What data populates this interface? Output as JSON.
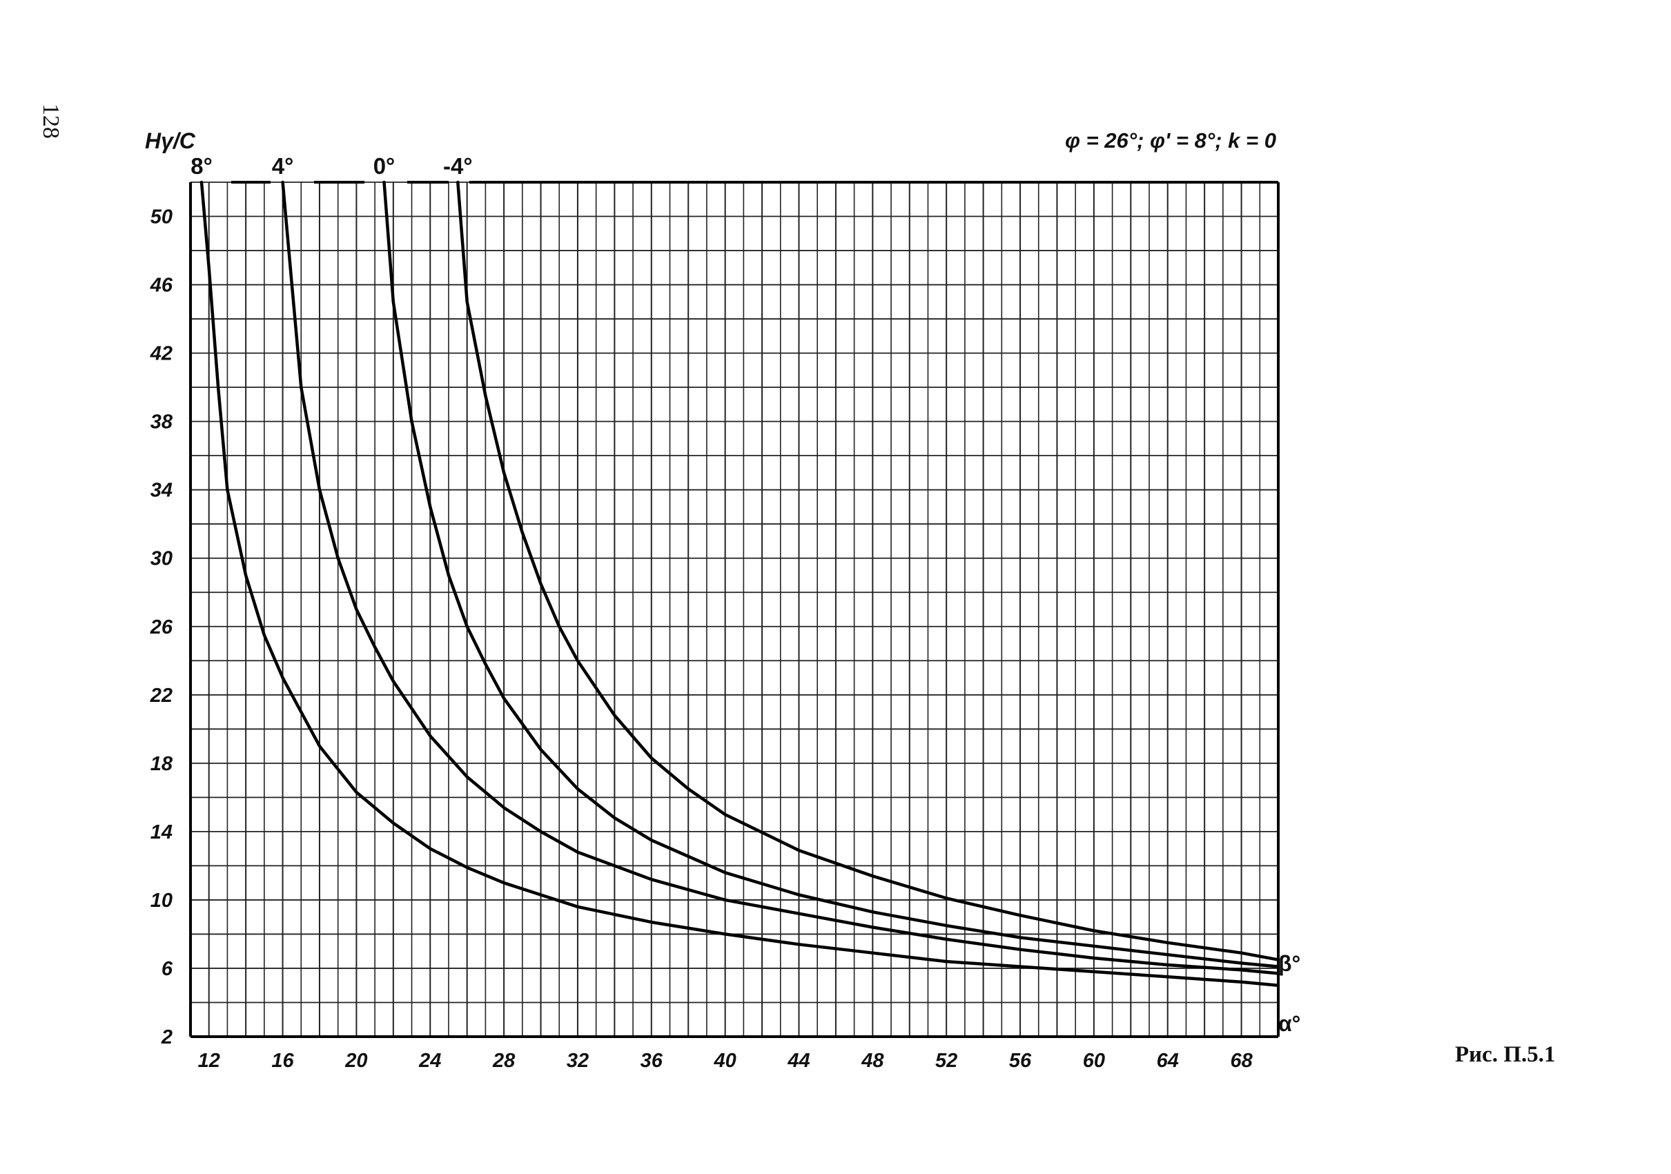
{
  "page": {
    "number": "128",
    "caption": "Рис. П.5.1"
  },
  "chart_data": {
    "type": "line",
    "title": "φ = 26°; φ' = 8°; k = 0",
    "ylabel": "Hγ/C",
    "xlabel": "α°",
    "series_axis_label": "β°",
    "xlim": [
      11,
      70
    ],
    "ylim": [
      2,
      52
    ],
    "x_ticks": [
      12,
      16,
      20,
      24,
      28,
      32,
      36,
      40,
      44,
      48,
      52,
      56,
      60,
      64,
      68
    ],
    "y_ticks": [
      2,
      6,
      10,
      14,
      18,
      22,
      26,
      30,
      34,
      38,
      42,
      46,
      50
    ],
    "grid": true,
    "series": [
      {
        "name": "8°",
        "x": [
          11.6,
          12,
          12.5,
          13,
          14,
          15,
          16,
          17,
          18,
          20,
          22,
          24,
          26,
          28,
          30,
          32,
          36,
          40,
          44,
          48,
          52,
          56,
          60,
          64,
          68,
          70
        ],
        "y": [
          52,
          47,
          40,
          34,
          29,
          25.5,
          23,
          21,
          19,
          16.3,
          14.5,
          13,
          11.9,
          11,
          10.3,
          9.6,
          8.7,
          8,
          7.4,
          6.9,
          6.4,
          6.1,
          5.8,
          5.5,
          5.2,
          5
        ]
      },
      {
        "name": "4°",
        "x": [
          16,
          16.5,
          17,
          18,
          19,
          20,
          21,
          22,
          24,
          26,
          28,
          30,
          32,
          36,
          40,
          44,
          48,
          52,
          56,
          60,
          64,
          68,
          70
        ],
        "y": [
          52,
          46,
          40,
          34,
          30,
          27,
          24.8,
          22.8,
          19.6,
          17.2,
          15.4,
          14,
          12.8,
          11.2,
          10,
          9.2,
          8.4,
          7.7,
          7.1,
          6.6,
          6.2,
          5.9,
          5.7
        ]
      },
      {
        "name": "0°",
        "x": [
          21.5,
          22,
          23,
          24,
          25,
          26,
          27,
          28,
          30,
          32,
          34,
          36,
          40,
          44,
          48,
          52,
          56,
          60,
          64,
          68,
          70
        ],
        "y": [
          52,
          45,
          38,
          33,
          29,
          26,
          23.8,
          21.8,
          18.8,
          16.5,
          14.8,
          13.5,
          11.6,
          10.3,
          9.3,
          8.5,
          7.8,
          7.3,
          6.8,
          6.3,
          6.1
        ]
      },
      {
        "name": "-4°",
        "x": [
          25.5,
          26,
          27,
          28,
          29,
          30,
          31,
          32,
          34,
          36,
          38,
          40,
          44,
          48,
          52,
          56,
          60,
          64,
          68,
          70
        ],
        "y": [
          52,
          45,
          39.5,
          35,
          31.5,
          28.5,
          26,
          24,
          20.8,
          18.3,
          16.5,
          15,
          12.9,
          11.4,
          10.1,
          9.1,
          8.2,
          7.5,
          6.9,
          6.5
        ]
      }
    ]
  }
}
